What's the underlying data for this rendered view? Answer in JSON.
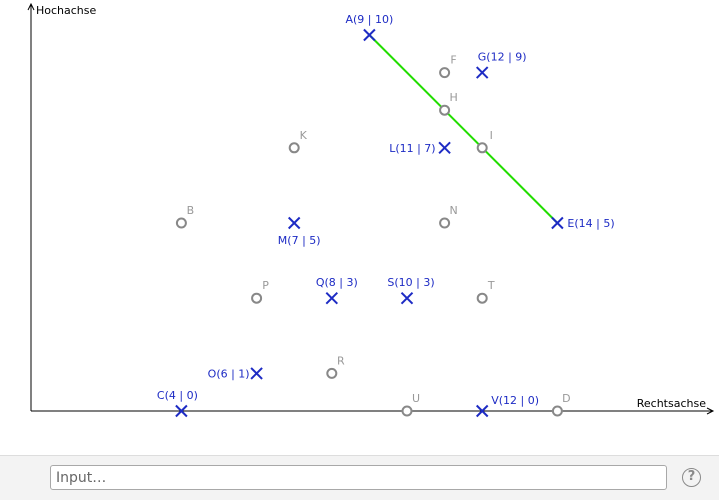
{
  "axes": {
    "x_label": "Rechtsachse",
    "y_label": "Hochachse"
  },
  "points": [
    {
      "name": "A",
      "label": "A(9 | 10)",
      "x": 9,
      "y": 10,
      "style": "cross",
      "color": "#1d2bc4"
    },
    {
      "name": "B",
      "label": "B",
      "x": 4,
      "y": 5,
      "style": "circle",
      "color": "#888888"
    },
    {
      "name": "C",
      "label": "C(4 | 0)",
      "x": 4,
      "y": 0,
      "style": "cross",
      "color": "#1d2bc4"
    },
    {
      "name": "D",
      "label": "D",
      "x": 14,
      "y": 0,
      "style": "circle",
      "color": "#888888"
    },
    {
      "name": "E",
      "label": "E(14 | 5)",
      "x": 14,
      "y": 5,
      "style": "cross",
      "color": "#1d2bc4"
    },
    {
      "name": "F",
      "label": "F",
      "x": 11,
      "y": 9,
      "style": "circle",
      "color": "#888888"
    },
    {
      "name": "G",
      "label": "G(12 | 9)",
      "x": 12,
      "y": 9,
      "style": "cross",
      "color": "#1d2bc4"
    },
    {
      "name": "H",
      "label": "H",
      "x": 11,
      "y": 8,
      "style": "circle",
      "color": "#888888"
    },
    {
      "name": "I",
      "label": "I",
      "x": 12,
      "y": 7,
      "style": "circle",
      "color": "#888888"
    },
    {
      "name": "K",
      "label": "K",
      "x": 7,
      "y": 7,
      "style": "circle",
      "color": "#888888"
    },
    {
      "name": "L",
      "label": "L(11 | 7)",
      "x": 11,
      "y": 7,
      "style": "cross",
      "color": "#1d2bc4"
    },
    {
      "name": "M",
      "label": "M(7 | 5)",
      "x": 7,
      "y": 5,
      "style": "cross",
      "color": "#1d2bc4"
    },
    {
      "name": "N",
      "label": "N",
      "x": 11,
      "y": 5,
      "style": "circle",
      "color": "#888888"
    },
    {
      "name": "O",
      "label": "O(6 | 1)",
      "x": 6,
      "y": 1,
      "style": "cross",
      "color": "#1d2bc4"
    },
    {
      "name": "P",
      "label": "P",
      "x": 6,
      "y": 3,
      "style": "circle",
      "color": "#888888"
    },
    {
      "name": "Q",
      "label": "Q(8 | 3)",
      "x": 8,
      "y": 3,
      "style": "cross",
      "color": "#1d2bc4"
    },
    {
      "name": "R",
      "label": "R",
      "x": 8,
      "y": 1,
      "style": "circle",
      "color": "#888888"
    },
    {
      "name": "S",
      "label": "S(10 | 3)",
      "x": 10,
      "y": 3,
      "style": "cross",
      "color": "#1d2bc4"
    },
    {
      "name": "T",
      "label": "T",
      "x": 12,
      "y": 3,
      "style": "circle",
      "color": "#888888"
    },
    {
      "name": "U",
      "label": "U",
      "x": 10,
      "y": 0,
      "style": "circle",
      "color": "#888888"
    },
    {
      "name": "V",
      "label": "V(12 | 0)",
      "x": 12,
      "y": 0,
      "style": "cross",
      "color": "#1d2bc4"
    }
  ],
  "segment": {
    "from": "A",
    "to": "E",
    "color": "#22dd00"
  },
  "input_bar": {
    "placeholder": "Input…",
    "help_glyph": "?",
    "help_icon": "question-icon"
  }
}
